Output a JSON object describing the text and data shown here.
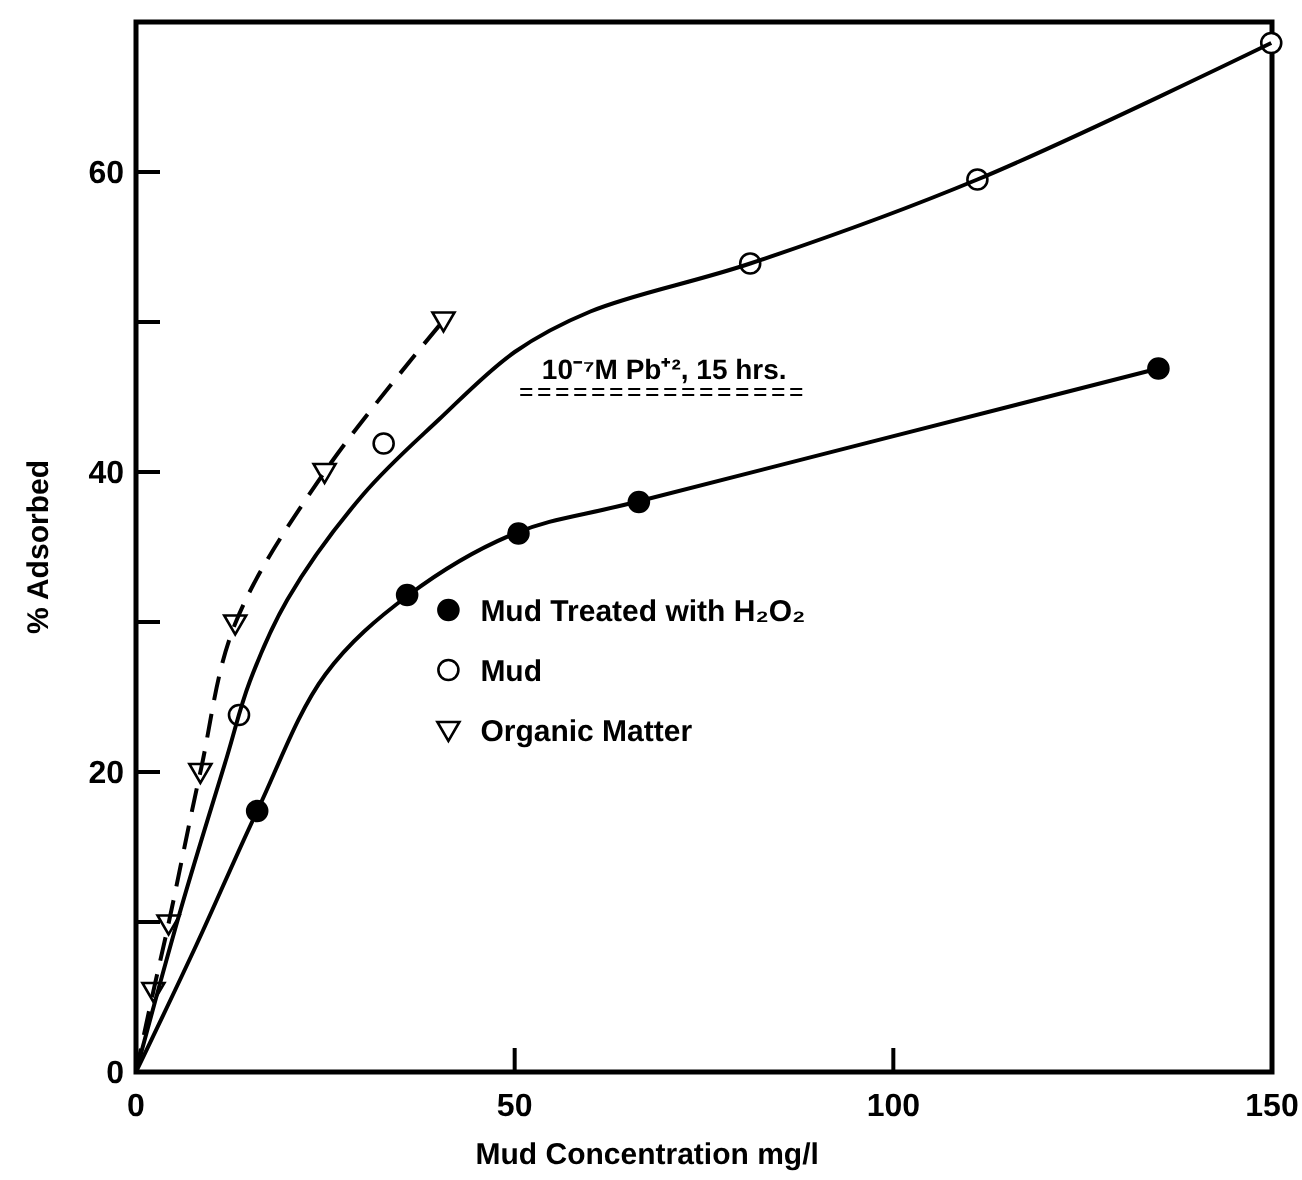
{
  "chart_data": {
    "type": "scatter",
    "xlabel": "Mud Concentration mg/l",
    "ylabel": "% Adsorbed",
    "xlim": [
      0,
      150
    ],
    "xticks": [
      0,
      50,
      100,
      150
    ],
    "ylim": [
      0,
      70
    ],
    "yticks": [
      0,
      {
        "value": 10,
        "label": null
      },
      20,
      {
        "value": 30,
        "label": null
      },
      40,
      {
        "value": 50,
        "label": null
      },
      60
    ],
    "grid": false,
    "legend": "center",
    "annotations": [
      "10⁻⁷M Pb⁺², 15 hrs."
    ],
    "series": [
      {
        "name": "Mud Treated with H₂O₂",
        "marker": "circle",
        "color": "#000000",
        "x": [
          16.0,
          35.8,
          50.5,
          66.4,
          135
        ],
        "values": [
          17.4,
          31.8,
          35.9,
          38.0,
          46.9
        ]
      },
      {
        "name": "Mud",
        "marker": "circle",
        "color": "#ffffff",
        "x": [
          13.6,
          32.7,
          81.1,
          111.1,
          149.9
        ],
        "values": [
          23.8,
          41.9,
          53.9,
          59.5,
          68.6
        ]
      },
      {
        "name": "Organic Matter",
        "marker": "triangle",
        "color": "#ffffff",
        "x": [
          2.3,
          4.3,
          8.5,
          13.1,
          24.9,
          40.6
        ],
        "values": [
          5.4,
          9.9,
          20.0,
          29.9,
          40.0,
          50.1
        ]
      },
      {
        "type": "line",
        "marker": "none",
        "line_style": "solid",
        "color": "#000000",
        "x": [
          0,
          8,
          16,
          25,
          36,
          50,
          66,
          135
        ],
        "values": [
          0,
          8.5,
          17.4,
          26.5,
          31.8,
          35.9,
          38.0,
          46.9
        ]
      },
      {
        "type": "line",
        "marker": "none",
        "line_style": "solid",
        "color": "#000000",
        "x": [
          0,
          6,
          12,
          15,
          20,
          30,
          40,
          50,
          60,
          81.1,
          111.1,
          149.9
        ],
        "values": [
          0,
          11,
          21,
          26,
          31.5,
          38.5,
          43.5,
          48,
          50.7,
          53.9,
          59.5,
          68.6
        ]
      },
      {
        "type": "line",
        "marker": "none",
        "line_style": "dashed",
        "color": "#000000",
        "x": [
          0,
          2.3,
          4.3,
          8.5,
          13.1,
          24.9,
          40.6
        ],
        "values": [
          0,
          5.4,
          9.9,
          20.0,
          29.9,
          40.0,
          50.1
        ]
      }
    ]
  }
}
